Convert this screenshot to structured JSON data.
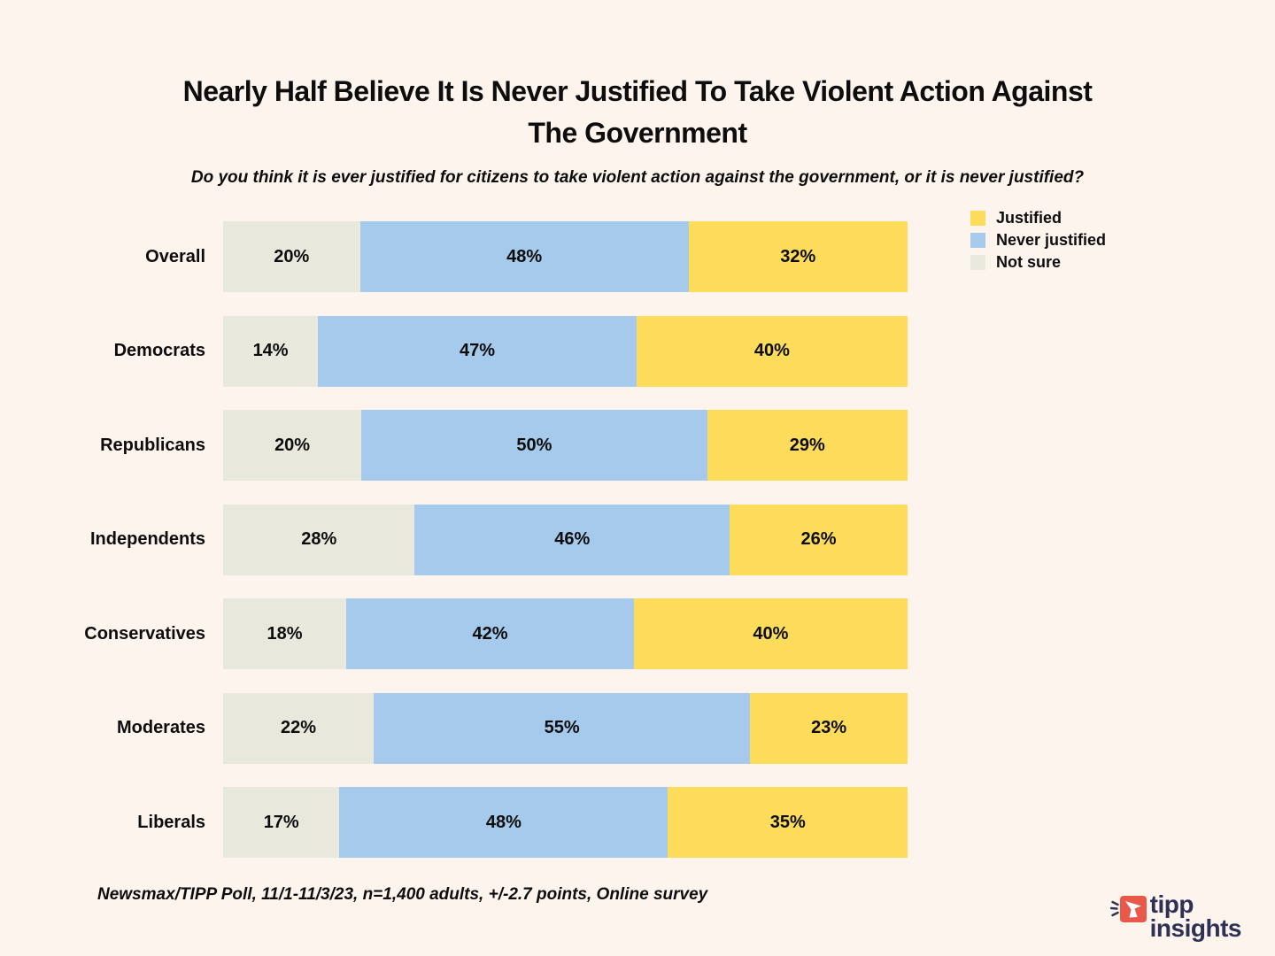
{
  "page": {
    "background": "#FDF4EE",
    "title_lines": [
      "Nearly Half Believe It Is Never Justified To Take Violent Action Against",
      "The Government"
    ],
    "subtitle": "Do you think it is ever justified for citizens to take violent action against the government, or it is never justified?",
    "footnote": "Newsmax/TIPP Poll, 11/1-11/3/23, n=1,400 adults, +/-2.7 points, Online survey"
  },
  "legend": {
    "position": "top-right",
    "items": [
      {
        "label": "Justified",
        "color": "#FDDC5B"
      },
      {
        "label": "Never justified",
        "color": "#A5CAEC"
      },
      {
        "label": "Not sure",
        "color": "#E9E8DD"
      }
    ]
  },
  "chart_data": {
    "type": "bar",
    "stacked": true,
    "orientation": "horizontal",
    "unit": "%",
    "title": "Nearly Half Believe It Is Never Justified To Take Violent Action Against The Government",
    "subtitle": "Do you think it is ever justified for citizens to take violent action against the government, or it is never justified?",
    "categories": [
      "Overall",
      "Democrats",
      "Republicans",
      "Independents",
      "Conservatives",
      "Moderates",
      "Liberals"
    ],
    "series": [
      {
        "name": "Not sure",
        "color": "#E9E8DD",
        "values": [
          20,
          14,
          20,
          28,
          18,
          22,
          17
        ]
      },
      {
        "name": "Never justified",
        "color": "#A5CAEC",
        "values": [
          48,
          47,
          50,
          46,
          42,
          55,
          48
        ]
      },
      {
        "name": "Justified",
        "color": "#FDDC5B",
        "values": [
          32,
          40,
          29,
          26,
          40,
          23,
          35
        ]
      }
    ],
    "value_labels": "inside-center",
    "axes": "none",
    "grid": false,
    "legend_position": "top-right",
    "source_note": "Newsmax/TIPP Poll, 11/1-11/3/23, n=1,400 adults, +/-2.7 points, Online survey"
  },
  "logo": {
    "line1": "tipp",
    "line2": "insights",
    "text_color": "#2D3154",
    "icon_color": "#E9594A"
  }
}
